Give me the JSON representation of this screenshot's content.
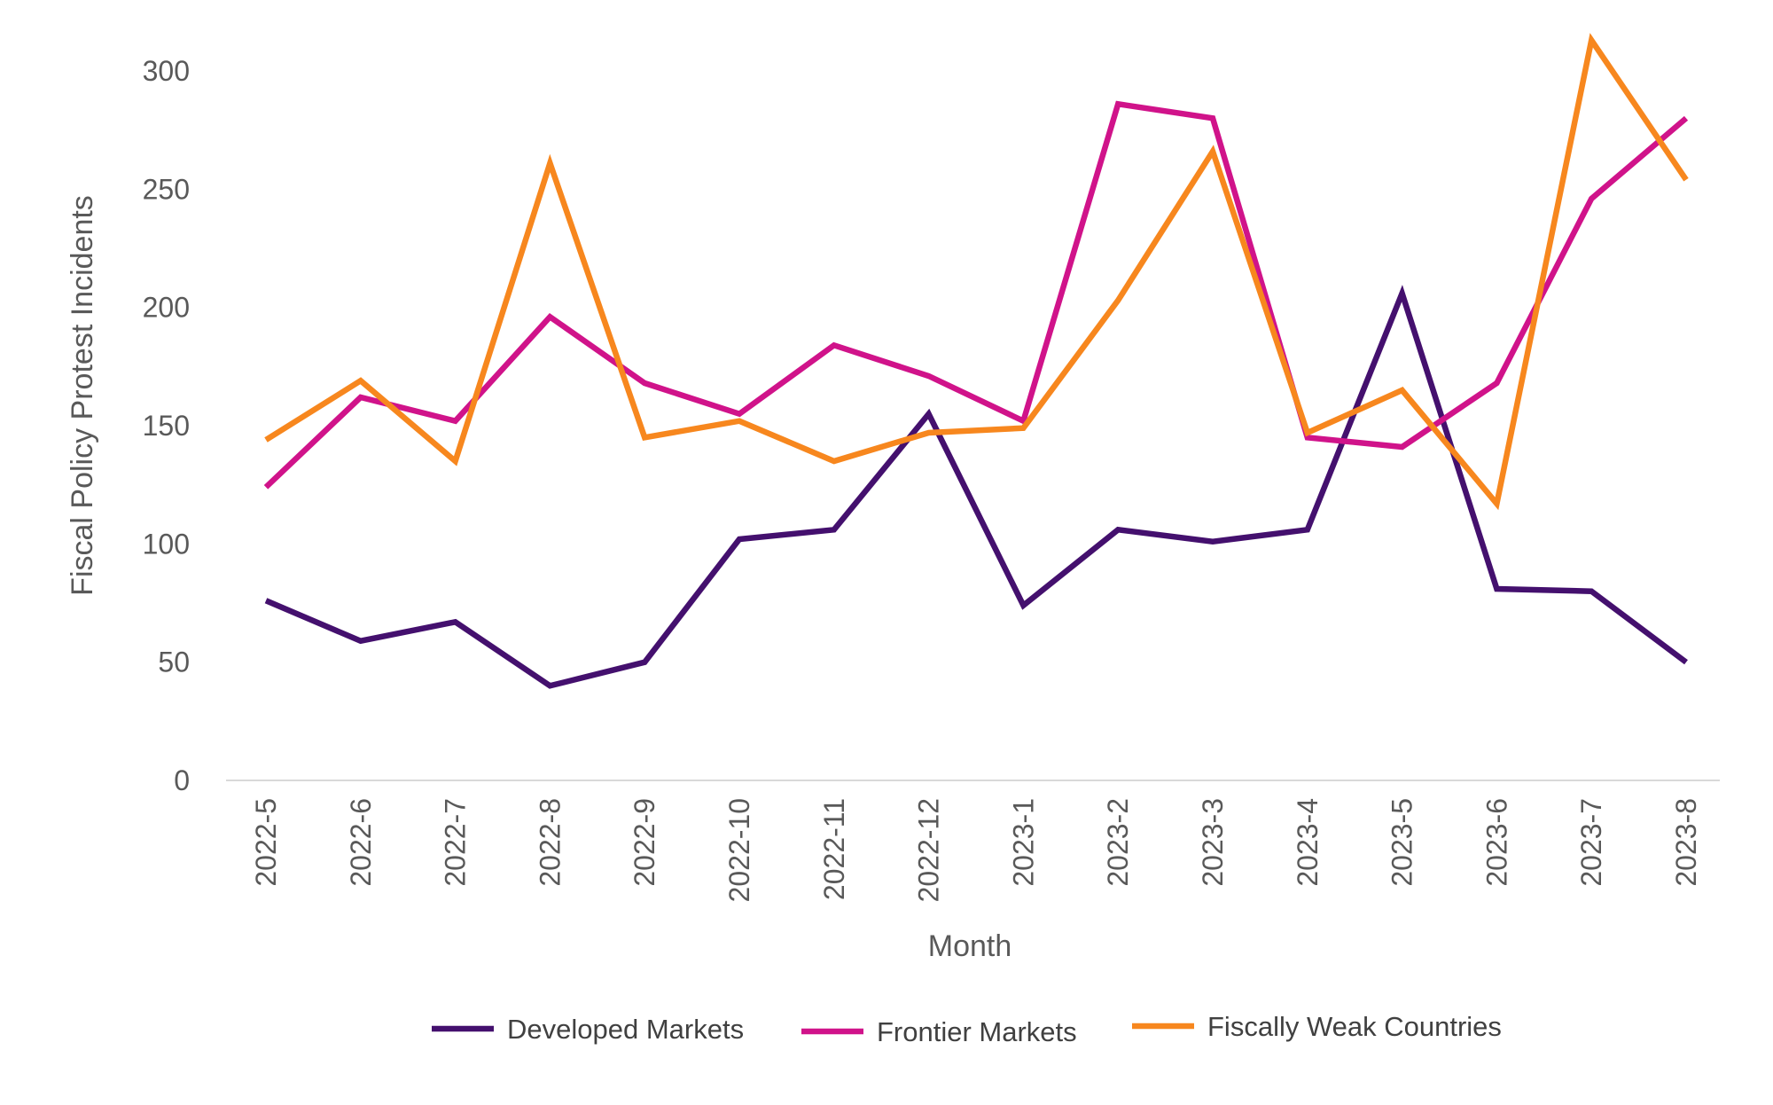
{
  "chart_data": {
    "type": "line",
    "title": "",
    "xlabel": "Month",
    "ylabel": "Fiscal Policy Protest Incidents",
    "ylim": [
      0,
      300
    ],
    "yticks": [
      "0",
      "50",
      "100",
      "150",
      "200",
      "250",
      "300"
    ],
    "grid": false,
    "legend_position": "bottom",
    "categories": [
      "2022-5",
      "2022-6",
      "2022-7",
      "2022-8",
      "2022-9",
      "2022-10",
      "2022-11",
      "2022-12",
      "2023-1",
      "2023-2",
      "2023-3",
      "2023-4",
      "2023-5",
      "2023-6",
      "2023-7",
      "2023-8"
    ],
    "series": [
      {
        "name": "Developed Markets",
        "color": "#44106e",
        "values": [
          76,
          59,
          67,
          40,
          50,
          102,
          106,
          155,
          74,
          106,
          101,
          106,
          206,
          81,
          80,
          50
        ]
      },
      {
        "name": "Frontier Markets",
        "color": "#d0138a",
        "values": [
          124,
          162,
          152,
          196,
          168,
          155,
          184,
          171,
          152,
          286,
          280,
          145,
          141,
          168,
          246,
          280
        ]
      },
      {
        "name": "Fiscally Weak Countries",
        "color": "#f7871e",
        "values": [
          144,
          169,
          135,
          261,
          145,
          152,
          135,
          147,
          149,
          203,
          266,
          147,
          165,
          117,
          313,
          254
        ]
      }
    ]
  }
}
